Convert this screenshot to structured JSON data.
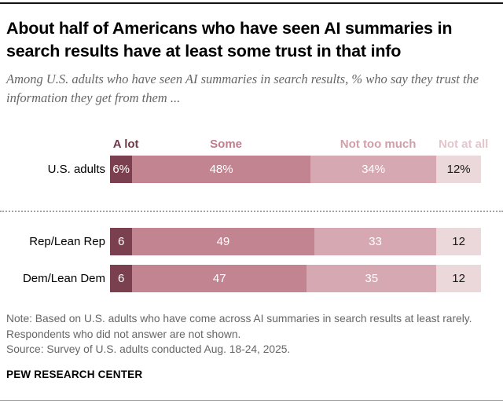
{
  "header": {
    "title": "About half of Americans who have seen AI summaries in search results have at least some trust in that info",
    "subtitle": "Among U.S. adults who have seen AI summaries in search results, % who say they trust the information they get from them ..."
  },
  "chart_data": {
    "type": "bar",
    "stacked": true,
    "orientation": "horizontal",
    "unit": "%",
    "xlim": [
      0,
      100
    ],
    "grid": false,
    "legend_position": "top",
    "categories": [
      "U.S. adults",
      "Rep/Lean Rep",
      "Dem/Lean Dem"
    ],
    "series": [
      {
        "name": "A lot",
        "values": [
          6,
          6,
          6
        ]
      },
      {
        "name": "Some",
        "values": [
          48,
          49,
          47
        ]
      },
      {
        "name": "Not too much",
        "values": [
          34,
          33,
          35
        ]
      },
      {
        "name": "Not at all",
        "values": [
          12,
          12,
          12
        ]
      }
    ],
    "value_labels": [
      [
        "6%",
        "48%",
        "34%",
        "12%"
      ],
      [
        "6",
        "49",
        "33",
        "12"
      ],
      [
        "6",
        "47",
        "35",
        "12"
      ]
    ],
    "colors": [
      "#7a4050",
      "#c28490",
      "#d5a8b2",
      "#ebd8db"
    ],
    "label_text_colors": [
      "#ffffff",
      "#ffffff",
      "#ffffff",
      "#1a1a1a"
    ],
    "legend_text_colors": [
      "#6f3a49",
      "#bf7e8e",
      "#d09fab",
      "#e3c6cd"
    ]
  },
  "footer": {
    "note": "Note: Based on U.S. adults who have come across AI summaries in search results at least rarely. Respondents who did not answer are not shown.",
    "source": "Source: Survey of U.S. adults conducted Aug. 18-24, 2025.",
    "brand": "PEW RESEARCH CENTER"
  }
}
